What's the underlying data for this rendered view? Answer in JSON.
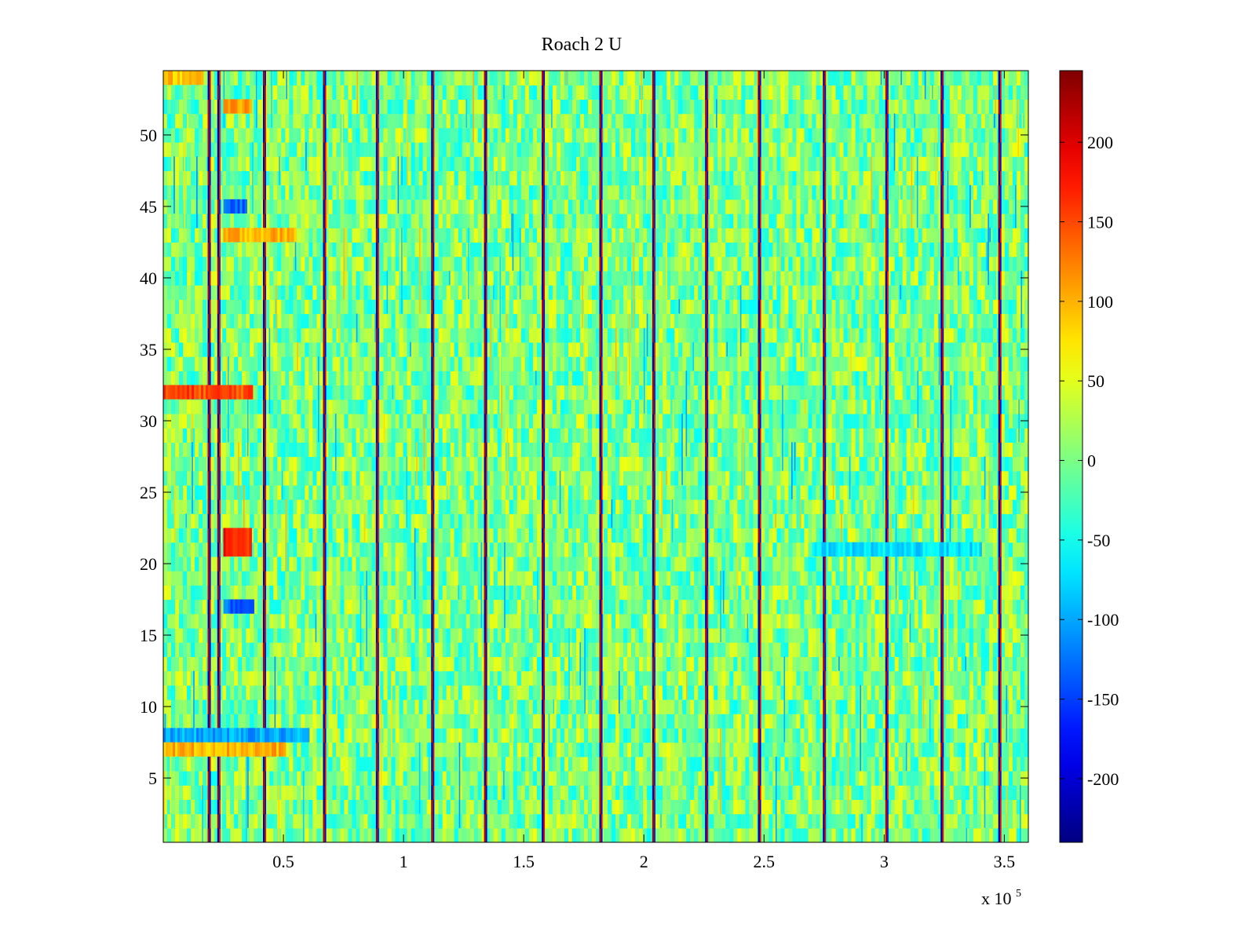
{
  "chart_data": {
    "type": "heatmap",
    "title": "Roach 2 U",
    "xlabel": "",
    "ylabel": "",
    "x_multiplier_label": "x 10",
    "x_multiplier_exponent": "5",
    "xlim": [
      0,
      360000
    ],
    "ylim": [
      0.5,
      54.5
    ],
    "x_ticks": [
      {
        "value": 50000,
        "label": "0.5"
      },
      {
        "value": 100000,
        "label": "1"
      },
      {
        "value": 150000,
        "label": "1.5"
      },
      {
        "value": 200000,
        "label": "2"
      },
      {
        "value": 250000,
        "label": "2.5"
      },
      {
        "value": 300000,
        "label": "3"
      },
      {
        "value": 350000,
        "label": "3.5"
      }
    ],
    "y_ticks": [
      {
        "value": 5,
        "label": "5"
      },
      {
        "value": 10,
        "label": "10"
      },
      {
        "value": 15,
        "label": "15"
      },
      {
        "value": 20,
        "label": "20"
      },
      {
        "value": 25,
        "label": "25"
      },
      {
        "value": 30,
        "label": "30"
      },
      {
        "value": 35,
        "label": "35"
      },
      {
        "value": 40,
        "label": "40"
      },
      {
        "value": 45,
        "label": "45"
      },
      {
        "value": 50,
        "label": "50"
      }
    ],
    "rows": 54,
    "colorbar": {
      "colormap": "jet",
      "clim": [
        -240,
        245
      ],
      "ticks": [
        {
          "value": 200,
          "label": "200"
        },
        {
          "value": 150,
          "label": "150"
        },
        {
          "value": 100,
          "label": "100"
        },
        {
          "value": 50,
          "label": "50"
        },
        {
          "value": 0,
          "label": "0"
        },
        {
          "value": -50,
          "label": "-50"
        },
        {
          "value": -100,
          "label": "-100"
        },
        {
          "value": -150,
          "label": "-150"
        },
        {
          "value": -200,
          "label": "-200"
        }
      ]
    },
    "stripe_events_x": [
      19000,
      23000,
      42000,
      67000,
      89000,
      112000,
      134000,
      158000,
      182000,
      204000,
      226000,
      248000,
      275000,
      301000,
      324000,
      348000
    ],
    "background_value_range": [
      -60,
      60
    ],
    "notable_patches": [
      {
        "rows": [
          31,
          32
        ],
        "x_range": [
          0,
          37000
        ],
        "value": 150
      },
      {
        "rows": [
          20,
          22
        ],
        "x_range": [
          25000,
          36000
        ],
        "value": 170
      },
      {
        "rows": [
          6,
          7
        ],
        "x_range": [
          0,
          50000
        ],
        "value": 100
      },
      {
        "rows": [
          7,
          8
        ],
        "x_range": [
          0,
          60000
        ],
        "value": -100
      },
      {
        "rows": [
          42,
          43
        ],
        "x_range": [
          25000,
          55000
        ],
        "value": 100
      },
      {
        "rows": [
          44,
          45
        ],
        "x_range": [
          25000,
          34000
        ],
        "value": -130
      },
      {
        "rows": [
          16,
          17
        ],
        "x_range": [
          25000,
          37000
        ],
        "value": -130
      },
      {
        "rows": [
          51,
          52
        ],
        "x_range": [
          25000,
          36000
        ],
        "value": 110
      },
      {
        "rows": [
          53,
          54
        ],
        "x_range": [
          0,
          16000
        ],
        "value": 90
      },
      {
        "rows": [
          20,
          21
        ],
        "x_range": [
          270000,
          340000
        ],
        "value": -70
      }
    ]
  }
}
